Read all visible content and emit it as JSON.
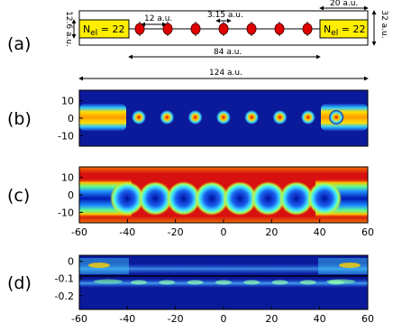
{
  "diagram": {
    "label": "(a)",
    "leads": [
      {
        "symbol": "N",
        "subscript": "el",
        "rest": " = 22"
      },
      {
        "symbol": "N",
        "subscript": "el",
        "rest": " = 22"
      }
    ],
    "dims": {
      "height": "12.6 a.u.",
      "spacing": "12 a.u.",
      "dot": "3.15 a.u.",
      "lead_length": "20 a.u.",
      "width": "32 a.u.",
      "chain": "84 a.u.",
      "total": "124 a.u."
    }
  },
  "chart_data": [
    {
      "type": "heatmap",
      "label": "(b)",
      "xlim": [
        -60,
        60
      ],
      "ylim": [
        -16,
        16
      ],
      "yticks": [
        10,
        0,
        -10
      ]
    },
    {
      "type": "heatmap",
      "label": "(c)",
      "xlim": [
        -60,
        60
      ],
      "ylim": [
        -16,
        16
      ],
      "yticks": [
        10,
        0,
        -10
      ],
      "xticks": [
        -60,
        -40,
        -20,
        0,
        20,
        40,
        60
      ]
    },
    {
      "type": "heatmap",
      "label": "(d)",
      "xlim": [
        -60,
        60
      ],
      "ylim": [
        -0.28,
        0.035
      ],
      "yticks": [
        0,
        -0.1,
        -0.2
      ],
      "xticks": [
        -60,
        -40,
        -20,
        0,
        20,
        40,
        60
      ]
    }
  ]
}
